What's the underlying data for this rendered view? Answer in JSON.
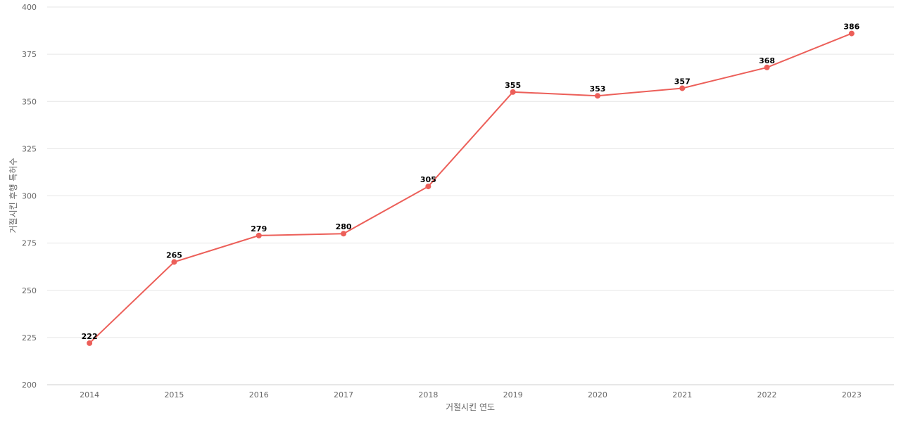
{
  "chart_data": {
    "type": "line",
    "title": "",
    "xlabel": "거절시킨 연도",
    "ylabel": "거절시킨 후행 특허수",
    "categories": [
      "2014",
      "2015",
      "2016",
      "2017",
      "2018",
      "2019",
      "2020",
      "2021",
      "2022",
      "2023"
    ],
    "series": [
      {
        "values": [
          222,
          265,
          279,
          280,
          305,
          355,
          353,
          357,
          368,
          386
        ],
        "color": "#ec5f59"
      }
    ],
    "ylim": [
      200,
      400
    ],
    "yticks": [
      200,
      225,
      250,
      275,
      300,
      325,
      350,
      375,
      400
    ],
    "grid": true,
    "legend": "none",
    "data_labels": true
  }
}
